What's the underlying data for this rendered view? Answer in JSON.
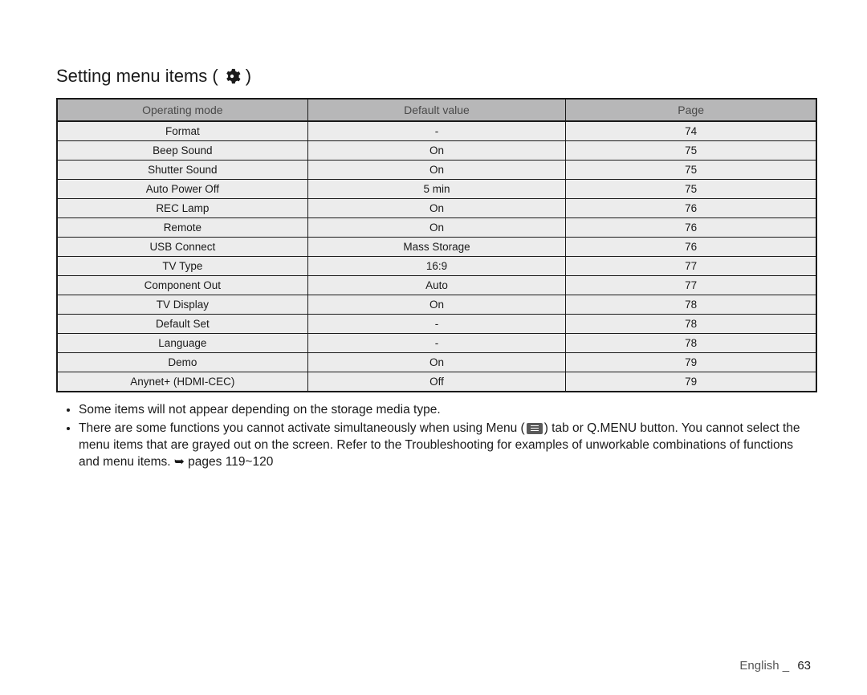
{
  "title": "Setting menu items (",
  "title_close": ")",
  "table": {
    "columns": [
      "Operating mode",
      "Default value",
      "Page"
    ],
    "rows": [
      [
        "Format",
        "-",
        "74"
      ],
      [
        "Beep Sound",
        "On",
        "75"
      ],
      [
        "Shutter Sound",
        "On",
        "75"
      ],
      [
        "Auto Power Off",
        "5 min",
        "75"
      ],
      [
        "REC Lamp",
        "On",
        "76"
      ],
      [
        "Remote",
        "On",
        "76"
      ],
      [
        "USB Connect",
        "Mass Storage",
        "76"
      ],
      [
        "TV Type",
        "16:9",
        "77"
      ],
      [
        "Component Out",
        "Auto",
        "77"
      ],
      [
        "TV Display",
        "On",
        "78"
      ],
      [
        "Default Set",
        "-",
        "78"
      ],
      [
        "Language",
        "-",
        "78"
      ],
      [
        "Demo",
        "On",
        "79"
      ],
      [
        "Anynet+ (HDMI-CEC)",
        "Off",
        "79"
      ]
    ]
  },
  "notes": {
    "n1": "Some items will not appear depending on the storage media type.",
    "n2_a": "There are some functions you cannot activate simultaneously when using Menu (",
    "n2_b": ") tab or Q.MENU button. You cannot select the menu items that are grayed out on the screen. Refer to the Troubleshooting for examples of unworkable combinations of functions and menu items. ➥ pages 119~120"
  },
  "footer": {
    "lang": "English _",
    "page": "63"
  },
  "colors": {
    "header_bg": "#b7b7b8",
    "cell_bg": "#ececec",
    "border": "#1a1a1a"
  }
}
